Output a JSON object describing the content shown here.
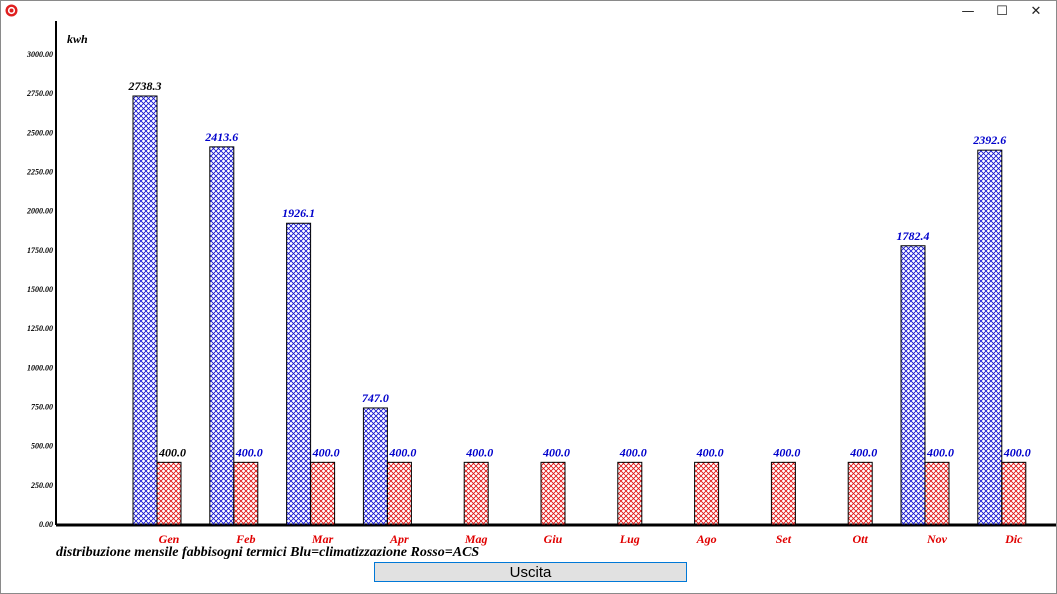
{
  "window": {
    "controls": {
      "minimize": "—",
      "maximize": "☐",
      "close": "✕"
    }
  },
  "chart_data": {
    "type": "bar",
    "ylabel": "kwh",
    "ylim": [
      0,
      3000
    ],
    "yticks": [
      "0.00",
      "250.00",
      "500.00",
      "750.00",
      "1000.00",
      "1250.00",
      "1500.00",
      "1750.00",
      "2000.00",
      "2250.00",
      "2500.00",
      "2750.00",
      "3000.00"
    ],
    "categories": [
      "Gen",
      "Feb",
      "Mar",
      "Apr",
      "Mag",
      "Giu",
      "Lug",
      "Ago",
      "Set",
      "Ott",
      "Nov",
      "Dic"
    ],
    "series": [
      {
        "color": "#0000cc",
        "values": [
          2738.3,
          2413.6,
          1926.1,
          747.0,
          0,
          0,
          0,
          0,
          0,
          0,
          1782.4,
          2392.6
        ],
        "labels": [
          "2738.3",
          "2413.6",
          "1926.1",
          "747.0",
          "",
          "",
          "",
          "",
          "",
          "",
          "1782.4",
          "2392.6"
        ]
      },
      {
        "color": "#dd0000",
        "values": [
          400,
          400,
          400,
          400,
          400,
          400,
          400,
          400,
          400,
          400,
          400,
          400
        ],
        "labels": [
          "400.0",
          "400.0",
          "400.0",
          "400.0",
          "400.0",
          "400.0",
          "400.0",
          "400.0",
          "400.0",
          "400.0",
          "400.0",
          "400.0"
        ]
      }
    ],
    "label_colors": [
      "#000000",
      "#0000cc",
      "#0000cc",
      "#0000cc",
      "#0000cc",
      "#0000cc",
      "#0000cc",
      "#0000cc",
      "#0000cc",
      "#0000cc",
      "#0000cc",
      "#0000cc"
    ],
    "caption": "distribuzione mensile fabbisogni termici Blu=climatizzazione Rosso=ACS",
    "grid": false
  },
  "footer": {
    "exit_label": "Uscita"
  }
}
